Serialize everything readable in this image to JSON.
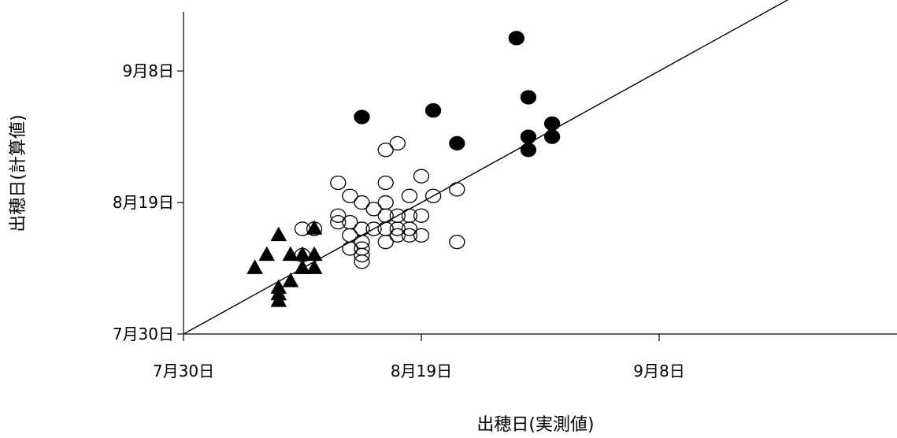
{
  "chart_data": {
    "type": "scatter",
    "title": "",
    "xlabel": "出穂日(実測値)",
    "ylabel": "出穂日(計算値)",
    "xlim": [
      "07-30",
      "09-28"
    ],
    "ylim": [
      "07-30",
      "09-17"
    ],
    "x_ticks": [
      {
        "date": "07-30",
        "label": "7月30日"
      },
      {
        "date": "08-19",
        "label": "8月19日"
      },
      {
        "date": "09-08",
        "label": "9月8日"
      }
    ],
    "y_ticks": [
      {
        "date": "07-30",
        "label": "7月30日"
      },
      {
        "date": "08-19",
        "label": "8月19日"
      },
      {
        "date": "09-08",
        "label": "9月8日"
      }
    ],
    "grid": false,
    "reference_line": {
      "from": [
        "07-30",
        "07-30"
      ],
      "to": [
        "09-28",
        "09-28"
      ]
    },
    "series": [
      {
        "marker": "triangle-filled",
        "color": "#000000",
        "points": [
          [
            "08-05",
            "08-09"
          ],
          [
            "08-06",
            "08-11"
          ],
          [
            "08-07",
            "08-14"
          ],
          [
            "08-07",
            "08-06"
          ],
          [
            "08-07",
            "08-05"
          ],
          [
            "08-07",
            "08-04"
          ],
          [
            "08-08",
            "08-11"
          ],
          [
            "08-08",
            "08-07"
          ],
          [
            "08-09",
            "08-11"
          ],
          [
            "08-09",
            "08-09"
          ],
          [
            "08-10",
            "08-11"
          ],
          [
            "08-10",
            "08-09"
          ],
          [
            "08-10",
            "08-15"
          ]
        ]
      },
      {
        "marker": "circle-open",
        "color": "#000000",
        "points": [
          [
            "08-09",
            "08-15"
          ],
          [
            "08-09",
            "08-11"
          ],
          [
            "08-10",
            "08-15"
          ],
          [
            "08-12",
            "08-22"
          ],
          [
            "08-12",
            "08-17"
          ],
          [
            "08-12",
            "08-16"
          ],
          [
            "08-13",
            "08-20"
          ],
          [
            "08-13",
            "08-16"
          ],
          [
            "08-13",
            "08-14"
          ],
          [
            "08-13",
            "08-12"
          ],
          [
            "08-14",
            "08-19"
          ],
          [
            "08-14",
            "08-15"
          ],
          [
            "08-14",
            "08-13"
          ],
          [
            "08-14",
            "08-12"
          ],
          [
            "08-14",
            "08-11"
          ],
          [
            "08-14",
            "08-10"
          ],
          [
            "08-15",
            "08-18"
          ],
          [
            "08-15",
            "08-15"
          ],
          [
            "08-16",
            "08-27"
          ],
          [
            "08-16",
            "08-22"
          ],
          [
            "08-16",
            "08-19"
          ],
          [
            "08-16",
            "08-17"
          ],
          [
            "08-16",
            "08-15"
          ],
          [
            "08-16",
            "08-13"
          ],
          [
            "08-17",
            "08-28"
          ],
          [
            "08-17",
            "08-17"
          ],
          [
            "08-17",
            "08-15"
          ],
          [
            "08-17",
            "08-14"
          ],
          [
            "08-18",
            "08-20"
          ],
          [
            "08-18",
            "08-17"
          ],
          [
            "08-18",
            "08-15"
          ],
          [
            "08-18",
            "08-14"
          ],
          [
            "08-19",
            "08-23"
          ],
          [
            "08-19",
            "08-17"
          ],
          [
            "08-19",
            "08-14"
          ],
          [
            "08-20",
            "08-20"
          ],
          [
            "08-22",
            "08-13"
          ],
          [
            "08-22",
            "08-21"
          ]
        ]
      },
      {
        "marker": "circle-filled",
        "color": "#000000",
        "points": [
          [
            "08-14",
            "09-01"
          ],
          [
            "08-20",
            "09-02"
          ],
          [
            "08-22",
            "08-28"
          ],
          [
            "08-27",
            "09-13"
          ],
          [
            "08-28",
            "09-04"
          ],
          [
            "08-28",
            "08-29"
          ],
          [
            "08-28",
            "08-27"
          ],
          [
            "08-30",
            "08-31"
          ],
          [
            "08-30",
            "08-29"
          ]
        ]
      }
    ]
  }
}
